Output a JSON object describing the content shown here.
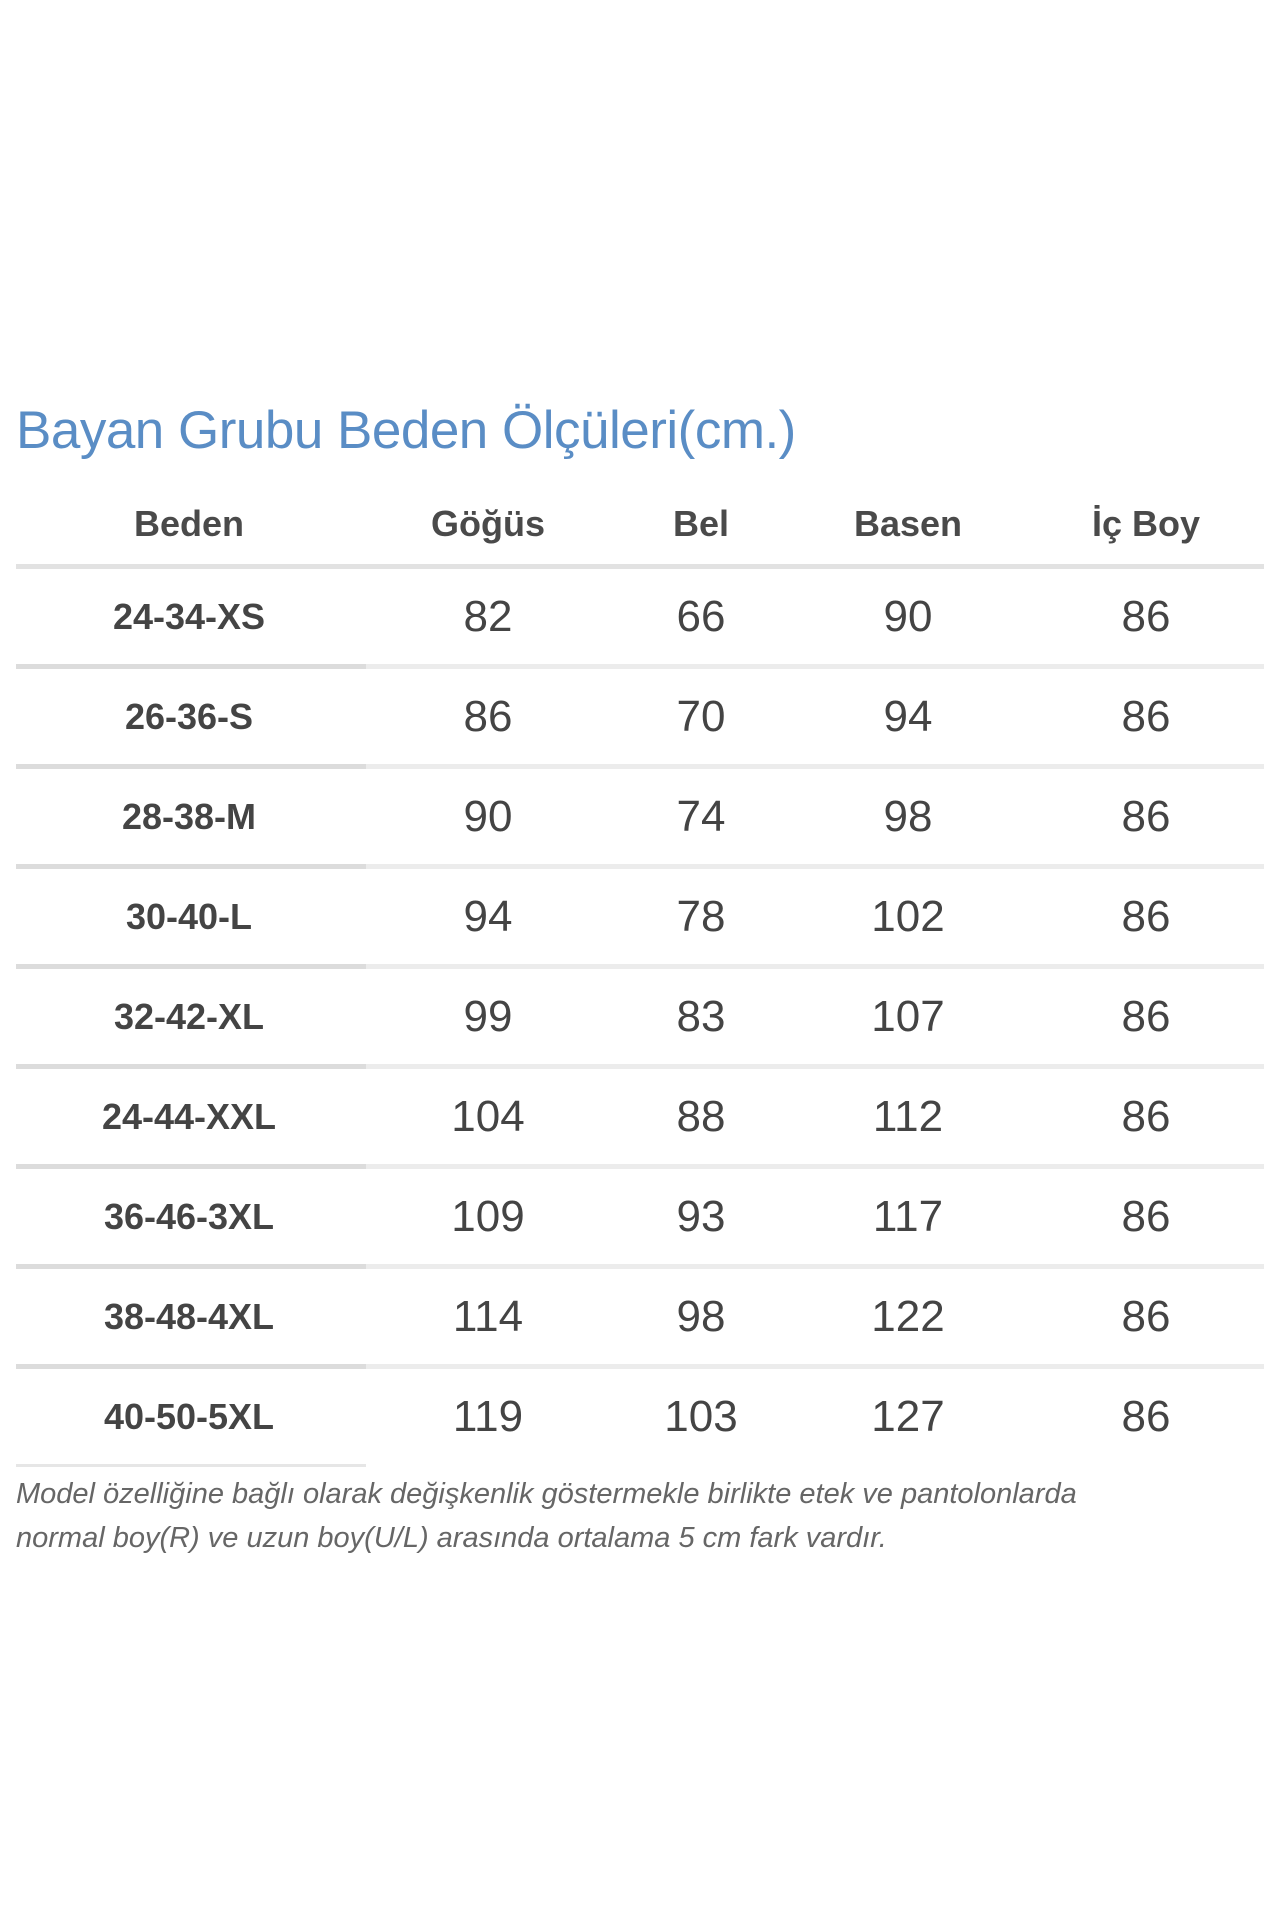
{
  "title": "Bayan Grubu Beden Ölçüleri(cm.)",
  "colors": {
    "title": "#5a8dc5",
    "text": "#444444"
  },
  "table": {
    "headers": [
      "Beden",
      "Göğüs",
      "Bel",
      "Basen",
      "İç Boy"
    ],
    "rows": [
      [
        "24-34-XS",
        "82",
        "66",
        "90",
        "86"
      ],
      [
        "26-36-S",
        "86",
        "70",
        "94",
        "86"
      ],
      [
        "28-38-M",
        "90",
        "74",
        "98",
        "86"
      ],
      [
        "30-40-L",
        "94",
        "78",
        "102",
        "86"
      ],
      [
        "32-42-XL",
        "99",
        "83",
        "107",
        "86"
      ],
      [
        "24-44-XXL",
        "104",
        "88",
        "112",
        "86"
      ],
      [
        "36-46-3XL",
        "109",
        "93",
        "117",
        "86"
      ],
      [
        "38-48-4XL",
        "114",
        "98",
        "122",
        "86"
      ],
      [
        "40-50-5XL",
        "119",
        "103",
        "127",
        "86"
      ]
    ]
  },
  "note": {
    "line1": "Model özelliğine bağlı olarak değişkenlik göstermekle birlikte etek ve pantolonlarda",
    "line2": "normal boy(R) ve uzun boy(U/L) arasında ortalama 5 cm fark vardır."
  }
}
